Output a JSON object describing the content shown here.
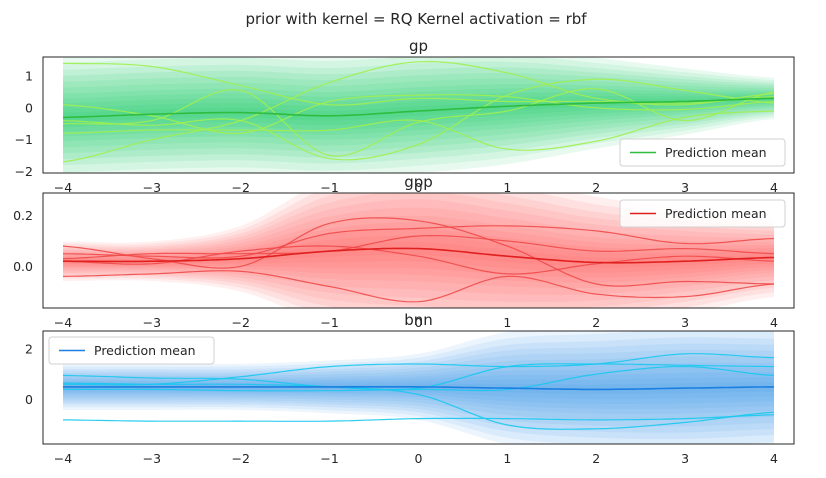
{
  "suptitle": "prior with kernel = RQ Kernel activation = rbf",
  "chart_data": [
    {
      "type": "line",
      "title": "gp",
      "xlim": [
        -4.0,
        4.0
      ],
      "ylim": [
        -2.05,
        1.6
      ],
      "xticks": [
        -4,
        -3,
        -2,
        -1,
        0,
        1,
        2,
        3,
        4
      ],
      "xtick_labels": [
        "−4",
        "−3",
        "−2",
        "−1",
        "0",
        "1",
        "2",
        "3",
        "4"
      ],
      "yticks": [
        -2,
        -1,
        0,
        1
      ],
      "ytick_labels": [
        "−2",
        "−1",
        "0",
        "1"
      ],
      "legend": "lower right",
      "colors": {
        "mean": "#2dbd3f",
        "band": "#00cc55",
        "samples": "#a0f050"
      },
      "mean": {
        "name": "Prediction mean",
        "x": [
          -4,
          -3,
          -2,
          -1,
          0,
          1,
          2,
          3,
          4
        ],
        "y": [
          -0.3,
          -0.2,
          -0.15,
          -0.25,
          -0.1,
          0.05,
          0.15,
          0.2,
          0.3
        ]
      },
      "band_sd": {
        "x": [
          -4,
          -3,
          -2,
          -1,
          0,
          1,
          2,
          3,
          4
        ],
        "y": [
          0.75,
          0.75,
          0.75,
          0.75,
          0.75,
          0.7,
          0.55,
          0.4,
          0.25
        ]
      },
      "samples": [
        {
          "x": [
            -4,
            -3,
            -2,
            -1,
            0,
            1,
            2,
            3,
            4
          ],
          "y": [
            1.4,
            1.3,
            0.7,
            0.1,
            0.3,
            0.2,
            0.2,
            0.1,
            0.45
          ]
        },
        {
          "x": [
            -4,
            -3,
            -2,
            -1,
            0,
            1,
            2,
            3,
            4
          ],
          "y": [
            -1.7,
            -1.0,
            -0.4,
            0.8,
            1.45,
            1.1,
            0.3,
            0.15,
            0.35
          ]
        },
        {
          "x": [
            -4,
            -3,
            -2,
            -1,
            0,
            1,
            2,
            3,
            4
          ],
          "y": [
            0.1,
            -0.25,
            -0.8,
            0.2,
            0.4,
            0.35,
            0.0,
            -0.05,
            0.2
          ]
        },
        {
          "x": [
            -4,
            -3,
            -2,
            -1,
            0,
            1,
            2,
            3,
            4
          ],
          "y": [
            -0.4,
            -0.55,
            -0.4,
            -1.6,
            -1.15,
            0.4,
            0.9,
            0.55,
            0.15
          ]
        },
        {
          "x": [
            -4,
            -3,
            -2,
            -1,
            0,
            1,
            2,
            3,
            4
          ],
          "y": [
            -0.8,
            -0.7,
            -0.7,
            -0.7,
            -0.4,
            -1.3,
            -1.05,
            -0.3,
            -0.1
          ]
        },
        {
          "x": [
            -4,
            -3,
            -2,
            -1,
            0,
            1,
            2,
            3,
            4
          ],
          "y": [
            -0.5,
            -0.4,
            0.55,
            -1.5,
            -0.45,
            -0.1,
            0.6,
            -0.4,
            0.5
          ]
        }
      ]
    },
    {
      "type": "line",
      "title": "gpp",
      "xlim": [
        -4.0,
        4.0
      ],
      "ylim": [
        -0.165,
        0.29
      ],
      "xticks": [
        -4,
        -3,
        -2,
        -1,
        0,
        1,
        2,
        3,
        4
      ],
      "xtick_labels": [
        "−4",
        "−3",
        "−2",
        "−1",
        "0",
        "1",
        "2",
        "3",
        "4"
      ],
      "yticks": [
        0.0,
        0.2
      ],
      "ytick_labels": [
        "0.0",
        "0.2"
      ],
      "legend": "upper right",
      "colors": {
        "mean": "#e0201e",
        "band": "#ff4a4a",
        "samples": "#f04a4a"
      },
      "mean": {
        "name": "Prediction mean",
        "x": [
          -4,
          -3,
          -2,
          -1,
          0,
          1,
          2,
          3,
          4
        ],
        "y": [
          0.02,
          0.02,
          0.03,
          0.06,
          0.07,
          0.04,
          0.015,
          0.02,
          0.035
        ]
      },
      "band_sd": {
        "x": [
          -4,
          -3,
          -2,
          -1,
          0,
          1,
          2,
          3,
          4
        ],
        "y": [
          0.03,
          0.03,
          0.05,
          0.11,
          0.13,
          0.12,
          0.1,
          0.08,
          0.06
        ]
      },
      "samples": [
        {
          "x": [
            -4,
            -3,
            -2,
            -1,
            0,
            1,
            2,
            3,
            4
          ],
          "y": [
            0.08,
            0.03,
            0.0,
            0.17,
            0.18,
            0.08,
            -0.07,
            -0.06,
            -0.07
          ]
        },
        {
          "x": [
            -4,
            -3,
            -2,
            -1,
            0,
            1,
            2,
            3,
            4
          ],
          "y": [
            -0.04,
            -0.03,
            -0.02,
            -0.08,
            -0.14,
            -0.04,
            -0.11,
            -0.12,
            -0.07
          ]
        },
        {
          "x": [
            -4,
            -3,
            -2,
            -1,
            0,
            1,
            2,
            3,
            4
          ],
          "y": [
            0.05,
            0.04,
            0.04,
            0.13,
            0.15,
            0.16,
            0.14,
            0.09,
            0.11
          ]
        },
        {
          "x": [
            -4,
            -3,
            -2,
            -1,
            0,
            1,
            2,
            3,
            4
          ],
          "y": [
            0.02,
            0.01,
            0.06,
            0.08,
            0.04,
            -0.03,
            0.01,
            0.04,
            0.02
          ]
        },
        {
          "x": [
            -4,
            -3,
            -2,
            -1,
            0,
            1,
            2,
            3,
            4
          ],
          "y": [
            0.03,
            0.05,
            0.05,
            0.06,
            0.12,
            0.1,
            0.06,
            0.07,
            0.05
          ]
        }
      ]
    },
    {
      "type": "line",
      "title": "bnn",
      "xlim": [
        -4.0,
        4.0
      ],
      "ylim": [
        -1.75,
        2.7
      ],
      "xticks": [
        -4,
        -3,
        -2,
        -1,
        0,
        1,
        2,
        3,
        4
      ],
      "xtick_labels": [
        "−4",
        "−3",
        "−2",
        "−1",
        "0",
        "1",
        "2",
        "3",
        "4"
      ],
      "yticks": [
        0,
        2
      ],
      "ytick_labels": [
        "0",
        "2"
      ],
      "legend": "upper left",
      "colors": {
        "mean": "#1a7fe0",
        "band": "#2a8be8",
        "samples": "#18c8ee"
      },
      "mean": {
        "name": "Prediction mean",
        "x": [
          -4,
          -3,
          -2,
          -1,
          0,
          1,
          2,
          3,
          4
        ],
        "y": [
          0.5,
          0.5,
          0.5,
          0.5,
          0.5,
          0.45,
          0.4,
          0.45,
          0.5
        ]
      },
      "band_sd": {
        "x": [
          -4,
          -3,
          -2,
          -1,
          0,
          1,
          2,
          3,
          4
        ],
        "y": [
          0.35,
          0.35,
          0.35,
          0.4,
          0.5,
          0.85,
          0.95,
          1.0,
          0.95
        ]
      },
      "samples": [
        {
          "x": [
            -4,
            -3,
            -2,
            -1,
            0,
            1,
            2,
            3,
            4
          ],
          "y": [
            0.95,
            0.85,
            0.8,
            0.5,
            0.45,
            1.3,
            1.4,
            1.35,
            1.3
          ]
        },
        {
          "x": [
            -4,
            -3,
            -2,
            -1,
            0,
            1,
            2,
            3,
            4
          ],
          "y": [
            0.6,
            0.6,
            0.9,
            1.3,
            1.4,
            1.3,
            1.4,
            1.8,
            1.65
          ]
        },
        {
          "x": [
            -4,
            -3,
            -2,
            -1,
            0,
            1,
            2,
            3,
            4
          ],
          "y": [
            0.65,
            0.6,
            0.6,
            0.5,
            0.2,
            -1.0,
            -1.15,
            -0.9,
            -0.5
          ]
        },
        {
          "x": [
            -4,
            -3,
            -2,
            -1,
            0,
            1,
            2,
            3,
            4
          ],
          "y": [
            -0.8,
            -0.85,
            -0.85,
            -0.85,
            -0.75,
            -0.75,
            -0.8,
            -0.75,
            -0.6
          ]
        },
        {
          "x": [
            -4,
            -3,
            -2,
            -1,
            0,
            1,
            2,
            3,
            4
          ],
          "y": [
            0.4,
            0.4,
            0.35,
            0.35,
            0.4,
            0.4,
            1.0,
            1.3,
            0.95
          ]
        }
      ]
    }
  ]
}
